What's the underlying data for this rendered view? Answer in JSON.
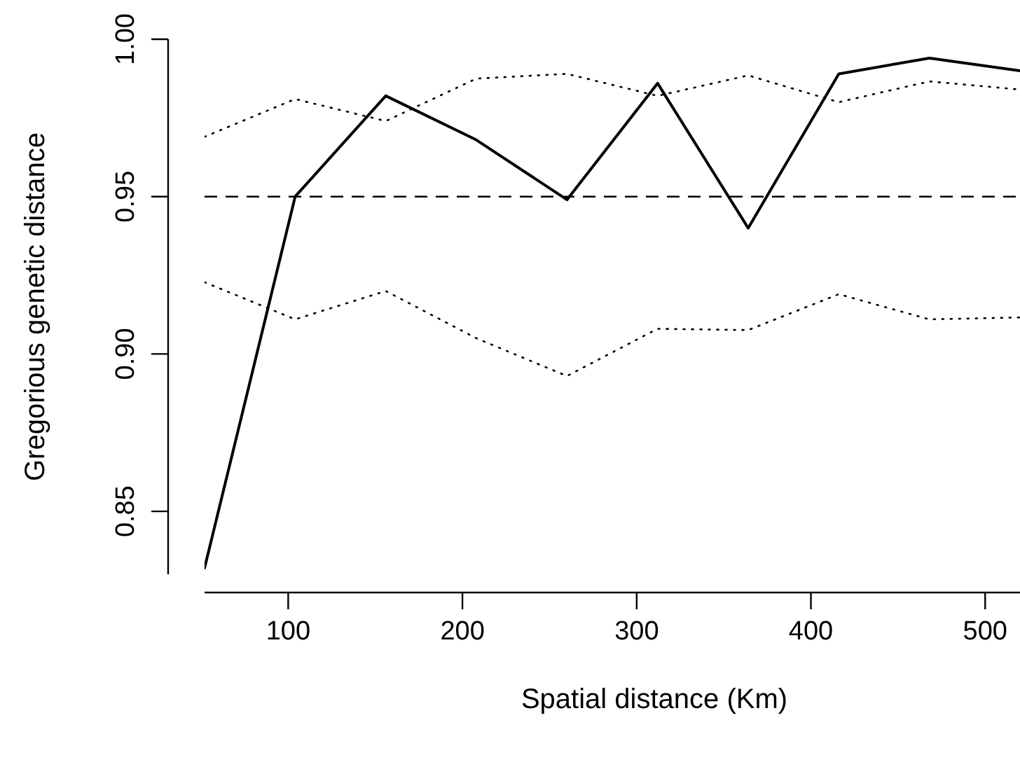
{
  "chart_data": {
    "type": "line",
    "xlabel": "Spatial distance (Km)",
    "ylabel": "Gregorious genetic distance",
    "x": [
      52,
      104,
      156,
      208,
      260,
      312,
      364,
      416,
      468,
      520
    ],
    "xlim": [
      52,
      520
    ],
    "xticks": [
      100,
      200,
      300,
      400,
      500
    ],
    "ylim": [
      0.83,
      1.0
    ],
    "yticks": [
      0.85,
      {
        "value": 0.9,
        "label": "0.90"
      },
      {
        "value": 0.95,
        "label": "0.95"
      },
      {
        "value": 1.0,
        "label": "1.00"
      }
    ],
    "series": [
      {
        "color": "#000000",
        "line_style": "solid",
        "values": [
          0.832,
          0.95,
          0.982,
          0.968,
          0.949,
          0.986,
          0.94,
          0.989,
          0.994,
          0.99
        ]
      },
      {
        "color": "#000000",
        "line_style": "dotted",
        "values": [
          0.969,
          0.981,
          0.974,
          0.9875,
          0.989,
          0.982,
          0.9885,
          0.98,
          0.9866,
          0.984
        ]
      },
      {
        "color": "#000000",
        "line_style": "dotted",
        "values": [
          0.9228,
          0.911,
          0.92,
          0.905,
          0.893,
          0.908,
          0.9076,
          0.919,
          0.911,
          0.9116
        ]
      }
    ],
    "ref_lines": [
      {
        "axis": "y",
        "value": 0.95,
        "color": "#000000",
        "line_style": "dashed"
      }
    ],
    "grid": false,
    "legend": false,
    "marker": "none"
  }
}
